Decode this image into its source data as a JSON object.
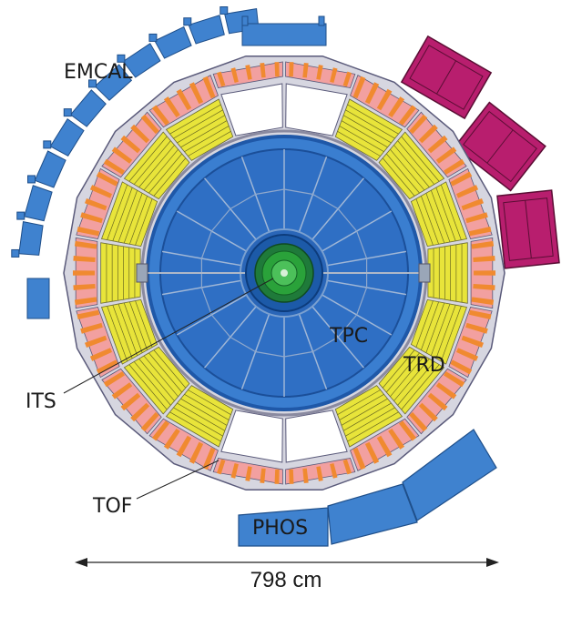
{
  "labels": {
    "emcal": "EMCAL",
    "tpc": "TPC",
    "trd": "TRD",
    "its": "ITS",
    "tof": "TOF",
    "phos": "PHOS"
  },
  "dimension": {
    "text": "798 cm"
  },
  "colors": {
    "emcal": "#3f82cf",
    "hmpid": "#b81e6e",
    "trd": "#e8e43a",
    "tof_pink": "#f2a0a0",
    "tof_orange": "#f08a30",
    "tpc_blue": "#2f6fc4",
    "tpc_frame": "#1f58a8",
    "its": "#2aa23a",
    "phos": "#3f82cf",
    "outline": "#5a5a7a"
  }
}
